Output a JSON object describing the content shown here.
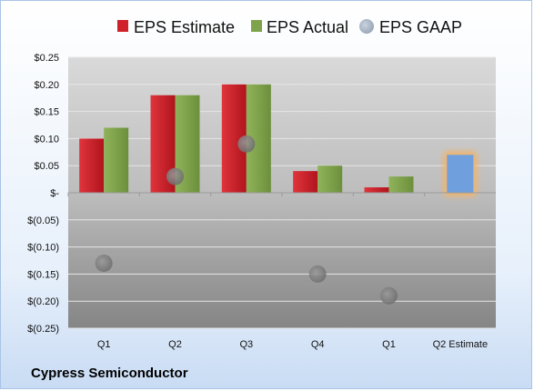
{
  "chart_data": {
    "type": "bar",
    "title": "",
    "xlabel": "",
    "ylabel": "",
    "categories": [
      "Q1",
      "Q2",
      "Q3",
      "Q4",
      "Q1",
      "Q2 Estimate"
    ],
    "series": [
      {
        "name": "EPS Estimate",
        "kind": "bar",
        "color": "#d0202a",
        "values": [
          0.1,
          0.18,
          0.2,
          0.04,
          0.01,
          null
        ]
      },
      {
        "name": "EPS Actual",
        "kind": "bar",
        "color": "#7fa34a",
        "values": [
          0.12,
          0.18,
          0.2,
          0.05,
          0.03,
          null
        ]
      },
      {
        "name": "EPS GAAP",
        "kind": "scatter",
        "color": "#a9b6c6",
        "values": [
          -0.13,
          0.03,
          0.09,
          -0.15,
          -0.19,
          null
        ]
      },
      {
        "name": "",
        "kind": "highlight-bar",
        "color": "#6f9fdc",
        "glow": "#f2b46b",
        "values": [
          null,
          null,
          null,
          null,
          null,
          0.07
        ]
      }
    ],
    "ylim": [
      -0.25,
      0.25
    ],
    "ytick_values": [
      0.25,
      0.2,
      0.15,
      0.1,
      0.05,
      0,
      -0.05,
      -0.1,
      -0.15,
      -0.2,
      -0.25
    ],
    "ytick_labels": [
      "$0.25",
      "$0.20",
      "$0.15",
      "$0.10",
      "$0.05",
      "$-",
      "$(0.05)",
      "$(0.10)",
      "$(0.15)",
      "$(0.20)",
      "$(0.25)"
    ],
    "grid": true,
    "legend_position": "top",
    "plot_background": "gray gradient",
    "company": "Cypress Semiconductor"
  }
}
